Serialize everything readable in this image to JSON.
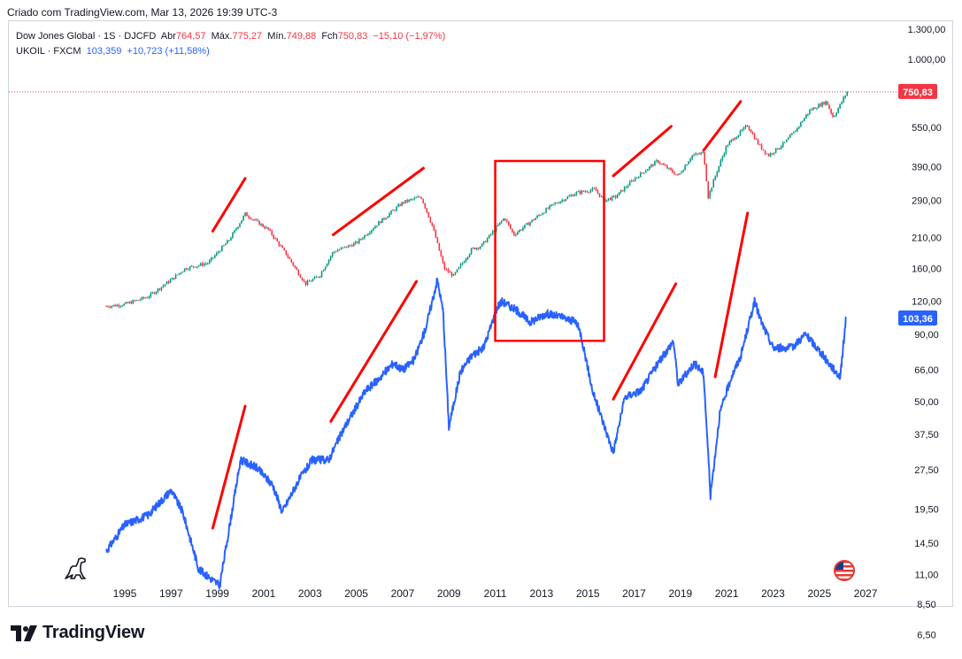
{
  "header": {
    "created_by": "Criado com TradingView.com, Mar 13, 2026 19:39 UTC-3"
  },
  "legend": {
    "djg": {
      "name": "Dow Jones Global · 1S · DJCFD",
      "open_label": "Abr",
      "open": "764,57",
      "high_label": "Máx.",
      "high": "775,27",
      "low_label": "Mín.",
      "low": "749,88",
      "close_label": "Fch",
      "close": "750,83",
      "change": "−15,10 (−1,97%)"
    },
    "ukoil": {
      "name": "UKOIL · FXCM",
      "value": "103,359",
      "change": "+10,723 (+11,58%)"
    }
  },
  "brand": {
    "name": "TradingView"
  },
  "icons": [
    "tradingview-logo-icon",
    "dinosaur-icon",
    "us-flag-icon"
  ],
  "colors": {
    "djg_up": "#089981",
    "djg_down": "#f23645",
    "ukoil": "#2962ff",
    "annotation": "#ff0000",
    "price_tag_red": "#f23645",
    "price_tag_blue": "#2962ff"
  },
  "chart_data": {
    "type": "line",
    "title": "Dow Jones Global vs UKOIL",
    "scale": "logarithmic",
    "x_ticks": [
      "1995",
      "1997",
      "1999",
      "2001",
      "2003",
      "2005",
      "2007",
      "2009",
      "2011",
      "2013",
      "2015",
      "2017",
      "2019",
      "2021",
      "2023",
      "2025",
      "2027"
    ],
    "y_ticks": [
      "1.300,00",
      "1.000,00",
      "750,83",
      "550,00",
      "390,00",
      "290,00",
      "210,00",
      "160,00",
      "120,00",
      "103,36",
      "90,00",
      "66,00",
      "50,00",
      "37,50",
      "27,50",
      "19,50",
      "14,50",
      "11,00",
      "8,50",
      "6,50"
    ],
    "y_tick_values": [
      1300,
      1000,
      550,
      390,
      290,
      210,
      160,
      120,
      90,
      66,
      50,
      37.5,
      27.5,
      19.5,
      14.5,
      11,
      8.5,
      6.5
    ],
    "last_value_tags": [
      {
        "series": "Dow Jones Global",
        "label": "750,83",
        "value": 750.83
      },
      {
        "series": "UKOIL",
        "label": "103,36",
        "value": 103.36
      }
    ],
    "series": [
      {
        "name": "Dow Jones Global (DJCFD)",
        "style": "candles",
        "x": [
          1994.2,
          1995.0,
          1996.0,
          1997.0,
          1997.6,
          1998.6,
          1999.5,
          2000.2,
          2001.2,
          2002.0,
          2002.8,
          2003.4,
          2004.0,
          2005.0,
          2006.0,
          2007.0,
          2007.8,
          2008.3,
          2008.8,
          2009.2,
          2010.0,
          2010.4,
          2011.4,
          2011.8,
          2012.5,
          2013.5,
          2014.5,
          2015.3,
          2015.7,
          2016.2,
          2017.0,
          2018.0,
          2018.9,
          2019.5,
          2020.0,
          2020.2,
          2020.6,
          2021.0,
          2021.9,
          2022.4,
          2022.8,
          2023.5,
          2024.0,
          2024.6,
          2025.3,
          2025.6,
          2026.2
        ],
        "values": [
          115,
          117,
          125,
          145,
          160,
          168,
          205,
          258,
          225,
          180,
          140,
          150,
          185,
          200,
          240,
          285,
          300,
          230,
          160,
          150,
          190,
          195,
          250,
          215,
          240,
          280,
          310,
          320,
          290,
          300,
          350,
          410,
          360,
          430,
          440,
          300,
          380,
          470,
          560,
          470,
          430,
          480,
          540,
          640,
          690,
          600,
          750.83
        ]
      },
      {
        "name": "UKOIL (FXCM)",
        "style": "line",
        "x": [
          1994.2,
          1995.0,
          1996.0,
          1997.0,
          1997.5,
          1998.2,
          1999.1,
          2000.0,
          2000.7,
          2001.4,
          2001.8,
          2002.5,
          2003.1,
          2003.8,
          2004.5,
          2005.4,
          2005.9,
          2006.6,
          2007.0,
          2007.5,
          2008.0,
          2008.5,
          2008.75,
          2009.0,
          2009.5,
          2010.0,
          2010.5,
          2011.1,
          2011.3,
          2012.0,
          2012.5,
          2013.2,
          2013.8,
          2014.5,
          2014.7,
          2015.2,
          2015.9,
          2016.1,
          2016.6,
          2017.3,
          2017.8,
          2018.7,
          2018.9,
          2019.6,
          2020.0,
          2020.3,
          2020.7,
          2021.2,
          2021.6,
          2022.2,
          2022.5,
          2023.0,
          2023.8,
          2024.4,
          2025.0,
          2025.4,
          2025.9,
          2026.15
        ],
        "values": [
          13.5,
          17,
          18.5,
          23,
          19,
          11.5,
          10,
          30,
          28,
          24,
          19,
          25,
          30,
          30,
          40,
          55,
          60,
          70,
          66,
          72,
          95,
          145,
          110,
          40,
          65,
          75,
          80,
          115,
          120,
          110,
          100,
          108,
          105,
          100,
          90,
          55,
          36,
          32,
          52,
          55,
          65,
          85,
          58,
          70,
          64,
          22,
          45,
          62,
          74,
          120,
          100,
          80,
          80,
          90,
          78,
          70,
          62,
          103.36
        ]
      }
    ],
    "annotations": {
      "trend_lines": [
        {
          "from": [
            1998.8,
            16.5
          ],
          "to": [
            2000.2,
            48
          ]
        },
        {
          "from": [
            2003.9,
            42
          ],
          "to": [
            2007.6,
            143
          ]
        },
        {
          "from": [
            2016.1,
            51
          ],
          "to": [
            2018.8,
            140
          ]
        },
        {
          "from": [
            2020.5,
            62
          ],
          "to": [
            2021.9,
            260
          ]
        },
        {
          "from": [
            1998.8,
            222
          ],
          "to": [
            2000.2,
            352
          ]
        },
        {
          "from": [
            2004.0,
            215
          ],
          "to": [
            2007.9,
            385
          ]
        },
        {
          "from": [
            2016.1,
            360
          ],
          "to": [
            2018.6,
            555
          ]
        },
        {
          "from": [
            2020.0,
            450
          ],
          "to": [
            2021.6,
            690
          ]
        }
      ],
      "rectangle": {
        "x0": 2011.0,
        "x1": 2015.7,
        "y_top": 410,
        "y_bottom": 85
      }
    }
  }
}
